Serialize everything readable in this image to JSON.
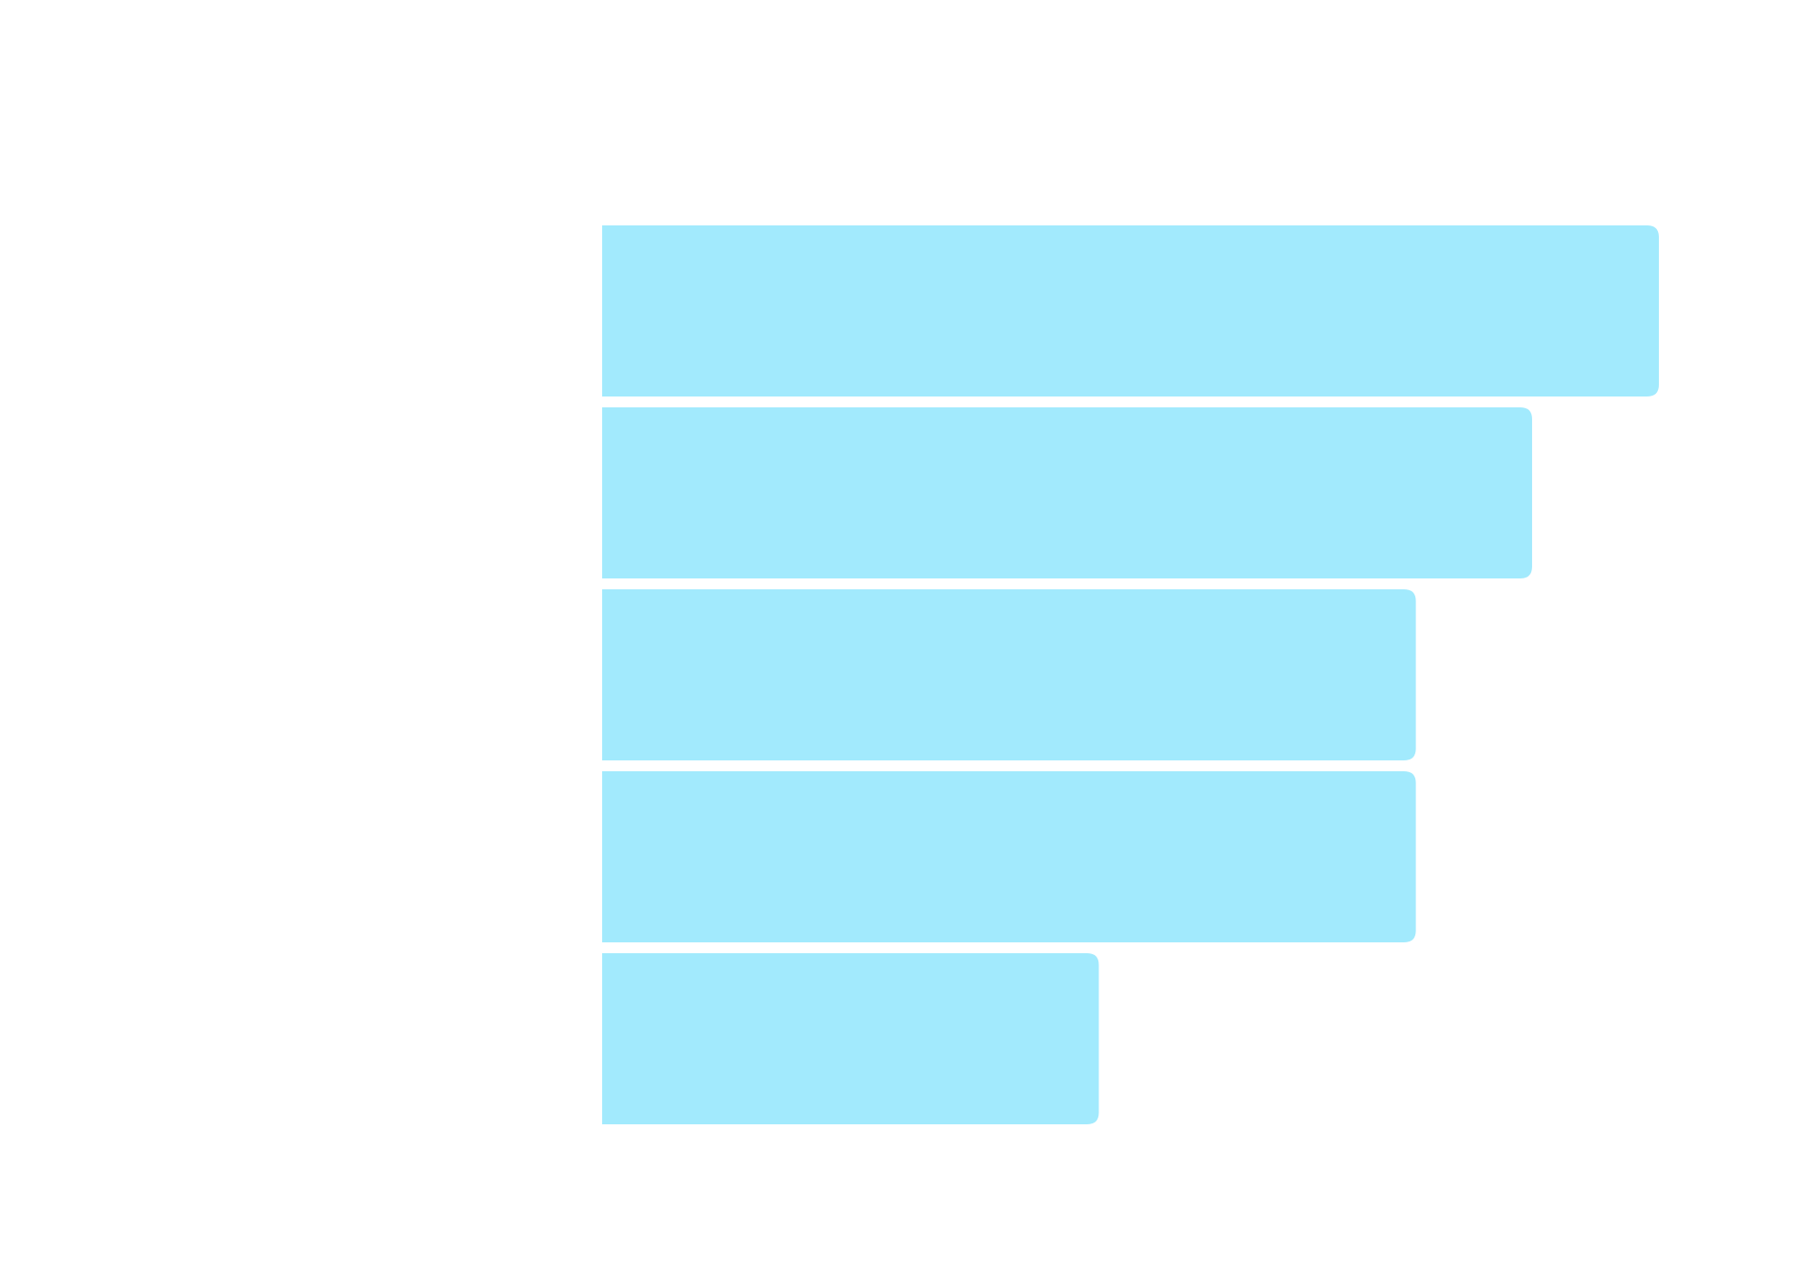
{
  "chart_data": {
    "type": "bar",
    "orientation": "horizontal",
    "categories": [
      null,
      null,
      null,
      null,
      null
    ],
    "values": [
      100,
      88,
      77,
      77,
      47
    ],
    "color": "#a2eafd"
  }
}
